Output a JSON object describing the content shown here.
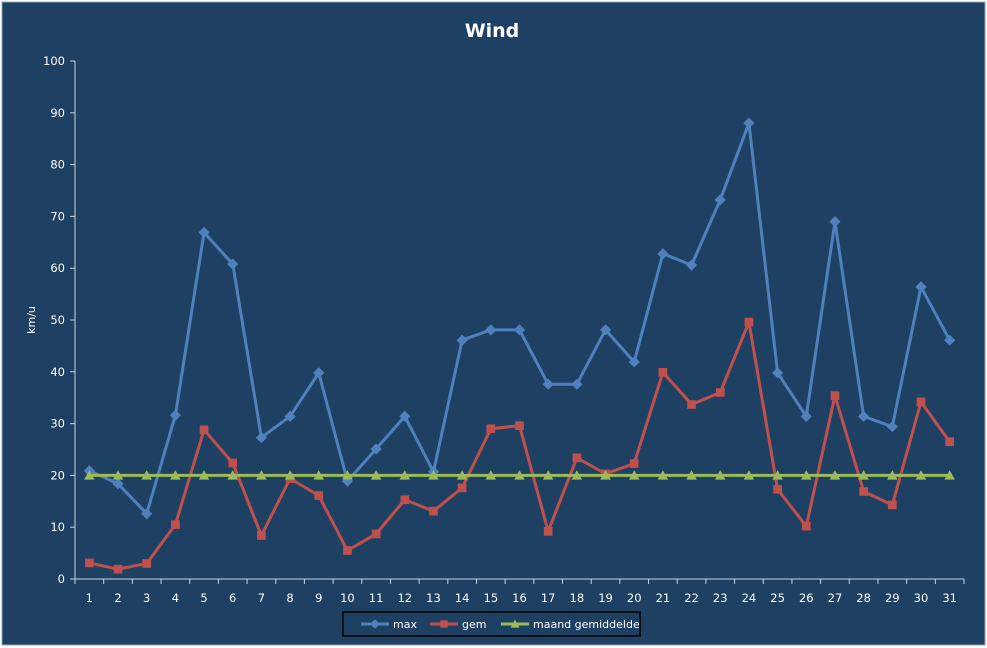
{
  "chart_data": {
    "type": "line",
    "title": "Wind",
    "xlabel": "",
    "ylabel": "km/u",
    "ylim": [
      0,
      100
    ],
    "yticks": [
      0,
      10,
      20,
      30,
      40,
      50,
      60,
      70,
      80,
      90,
      100
    ],
    "grid": false,
    "legend_position": "bottom",
    "background": "#1e4063",
    "categories": [
      "1",
      "2",
      "3",
      "4",
      "5",
      "6",
      "7",
      "8",
      "9",
      "10",
      "11",
      "12",
      "13",
      "14",
      "15",
      "16",
      "17",
      "18",
      "19",
      "20",
      "21",
      "22",
      "23",
      "24",
      "25",
      "26",
      "27",
      "28",
      "29",
      "30",
      "31"
    ],
    "series": [
      {
        "name": "max",
        "color": "#4f81bd",
        "marker": "diamond",
        "values": [
          20.9,
          18.4,
          12.6,
          31.6,
          66.9,
          60.8,
          27.3,
          31.4,
          39.8,
          18.9,
          25.1,
          31.4,
          20.7,
          46.1,
          48.1,
          48.1,
          37.6,
          37.6,
          48.1,
          41.9,
          62.8,
          60.6,
          73.2,
          88,
          39.8,
          31.4,
          69,
          31.4,
          29.4,
          56.4,
          46.1
        ]
      },
      {
        "name": "gem",
        "color": "#c0504d",
        "marker": "square",
        "values": [
          3.1,
          1.9,
          3,
          10.5,
          28.8,
          22.4,
          8.4,
          19.4,
          16.1,
          5.5,
          8.7,
          15.3,
          13.1,
          17.6,
          29,
          29.6,
          9.2,
          23.4,
          20.3,
          22.3,
          39.9,
          33.7,
          36,
          49.6,
          17.3,
          10.2,
          35.4,
          16.9,
          14.3,
          34.2,
          26.5
        ]
      },
      {
        "name": "maand gemiddelde",
        "color": "#9bbb59",
        "marker": "triangle",
        "values": [
          20,
          20,
          20,
          20,
          20,
          20,
          20,
          20,
          20,
          20,
          20,
          20,
          20,
          20,
          20,
          20,
          20,
          20,
          20,
          20,
          20,
          20,
          20,
          20,
          20,
          20,
          20,
          20,
          20,
          20,
          20
        ]
      }
    ]
  }
}
